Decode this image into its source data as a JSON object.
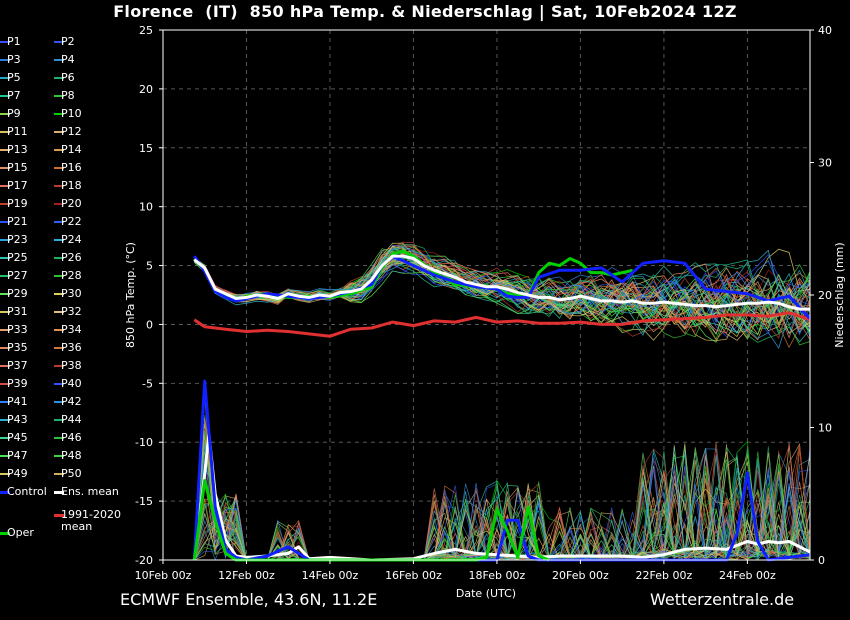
{
  "title": "Florence  (IT)  850 hPa Temp. & Niederschlag | Sat, 10Feb2024 12Z",
  "footer_left": "ECMWF Ensemble, 43.6N, 11.2E",
  "footer_right": "Wetterzentrale.de",
  "legend": [
    {
      "label": "P1",
      "color": "#3a4dff"
    },
    {
      "label": "P2",
      "color": "#3355ee"
    },
    {
      "label": "P3",
      "color": "#2f7fd9"
    },
    {
      "label": "P4",
      "color": "#2f8fd0"
    },
    {
      "label": "P5",
      "color": "#27a6c8"
    },
    {
      "label": "P6",
      "color": "#22b070"
    },
    {
      "label": "P7",
      "color": "#1fc890"
    },
    {
      "label": "P8",
      "color": "#32c832"
    },
    {
      "label": "P9",
      "color": "#8bd34a"
    },
    {
      "label": "P10",
      "color": "#00d000"
    },
    {
      "label": "P11",
      "color": "#d6c05a"
    },
    {
      "label": "P12",
      "color": "#d8b070"
    },
    {
      "label": "P13",
      "color": "#e0b070"
    },
    {
      "label": "P14",
      "color": "#d89858"
    },
    {
      "label": "P15",
      "color": "#e09060"
    },
    {
      "label": "P16",
      "color": "#d07030"
    },
    {
      "label": "P17",
      "color": "#e07060"
    },
    {
      "label": "P18",
      "color": "#b04030"
    },
    {
      "label": "P19",
      "color": "#c04030"
    },
    {
      "label": "P20",
      "color": "#a02020"
    },
    {
      "label": "P21",
      "color": "#3050ff"
    },
    {
      "label": "P22",
      "color": "#2f60f0"
    },
    {
      "label": "P23",
      "color": "#2f9fe0"
    },
    {
      "label": "P24",
      "color": "#2fafd8"
    },
    {
      "label": "P25",
      "color": "#30c0b0"
    },
    {
      "label": "P26",
      "color": "#20b060"
    },
    {
      "label": "P27",
      "color": "#22c060"
    },
    {
      "label": "P28",
      "color": "#30c030"
    },
    {
      "label": "P29",
      "color": "#60e060"
    },
    {
      "label": "P30",
      "color": "#d8d060"
    },
    {
      "label": "P31",
      "color": "#d8c860"
    },
    {
      "label": "P32",
      "color": "#e0c078"
    },
    {
      "label": "P33",
      "color": "#e0a070"
    },
    {
      "label": "P34",
      "color": "#e09050"
    },
    {
      "label": "P35",
      "color": "#e08860"
    },
    {
      "label": "P36",
      "color": "#d07838"
    },
    {
      "label": "P37",
      "color": "#e07060"
    },
    {
      "label": "P38",
      "color": "#b04030"
    },
    {
      "label": "P39",
      "color": "#d05040"
    },
    {
      "label": "P40",
      "color": "#3050ff"
    },
    {
      "label": "P41",
      "color": "#3080ff"
    },
    {
      "label": "P42",
      "color": "#2f90e0"
    },
    {
      "label": "P43",
      "color": "#30b0d0"
    },
    {
      "label": "P44",
      "color": "#20b070"
    },
    {
      "label": "P45",
      "color": "#40d090"
    },
    {
      "label": "P46",
      "color": "#30c040"
    },
    {
      "label": "P47",
      "color": "#50e050"
    },
    {
      "label": "P48",
      "color": "#40d040"
    },
    {
      "label": "P49",
      "color": "#d8c860"
    },
    {
      "label": "P50",
      "color": "#d0b060"
    },
    {
      "label": "Control",
      "color": "#1020ff"
    },
    {
      "label": "Ens. mean",
      "color": "#ffffff"
    },
    {
      "label": "Oper",
      "color": "#00d000"
    },
    {
      "label": "1991-2020\nmean",
      "color": "#e03030"
    }
  ],
  "chart_data": {
    "type": "line",
    "xlabel": "Date (UTC)",
    "ylabel": "850 hPa Temp. (°C)",
    "ylabel_right": "Niederschlag (mm)",
    "x_start": "10Feb 00z",
    "x_ticks": [
      "10Feb 00z",
      "12Feb 00z",
      "14Feb 00z",
      "16Feb 00z",
      "18Feb 00z",
      "20Feb 00z",
      "22Feb 00z",
      "24Feb 00z"
    ],
    "x_days": [
      0,
      2,
      4,
      6,
      8,
      10,
      12,
      14
    ],
    "xlim_days": [
      0,
      15.5
    ],
    "ylim": [
      -20,
      25
    ],
    "y_ticks": [
      -20,
      -15,
      -10,
      -5,
      0,
      5,
      10,
      15,
      20,
      25
    ],
    "ylim_right": [
      0,
      40
    ],
    "y_ticks_right": [
      0,
      10,
      20,
      30,
      40
    ],
    "grid": true,
    "temperature_series": [
      {
        "name": "Ens. mean",
        "color": "#ffffff",
        "x": [
          0.75,
          1,
          1.25,
          1.5,
          1.75,
          2,
          2.25,
          2.5,
          2.75,
          3,
          3.25,
          3.5,
          3.75,
          4,
          4.25,
          4.5,
          4.75,
          5,
          5.25,
          5.5,
          5.75,
          6,
          6.25,
          6.5,
          6.75,
          7,
          7.25,
          7.5,
          7.75,
          8,
          8.25,
          8.5,
          8.75,
          9,
          9.25,
          9.5,
          9.75,
          10,
          10.25,
          10.5,
          10.75,
          11,
          11.25,
          11.5,
          11.75,
          12,
          12.25,
          12.5,
          12.75,
          13,
          13.25,
          13.5,
          13.75,
          14,
          14.25,
          14.5,
          14.75,
          15,
          15.25,
          15.5
        ],
        "y": [
          5.5,
          4.8,
          3.0,
          2.6,
          2.2,
          2.3,
          2.5,
          2.4,
          2.2,
          2.6,
          2.4,
          2.3,
          2.5,
          2.4,
          2.7,
          2.8,
          3.0,
          3.8,
          5.0,
          5.8,
          5.8,
          5.6,
          5.0,
          4.6,
          4.3,
          4.0,
          3.6,
          3.4,
          3.2,
          3.2,
          3.0,
          2.7,
          2.5,
          2.3,
          2.3,
          2.1,
          2.2,
          2.4,
          2.2,
          2.0,
          2.0,
          1.9,
          2.0,
          1.8,
          1.8,
          1.9,
          1.8,
          1.7,
          1.6,
          1.6,
          1.5,
          1.6,
          1.7,
          1.8,
          1.8,
          1.9,
          1.8,
          1.5,
          1.3,
          1.3
        ]
      },
      {
        "name": "Control",
        "color": "#1020ff",
        "x": [
          0.75,
          1,
          1.25,
          1.5,
          1.75,
          2,
          2.5,
          3,
          3.5,
          4,
          4.5,
          5,
          5.25,
          5.5,
          5.75,
          6,
          6.5,
          7,
          7.5,
          8,
          8.25,
          8.5,
          8.75,
          9,
          9.5,
          10,
          10.5,
          11,
          11.5,
          12,
          12.5,
          13,
          13.5,
          14,
          14.5,
          15,
          15.5
        ],
        "y": [
          5.8,
          4.5,
          2.8,
          2.3,
          2.0,
          2.2,
          2.6,
          2.4,
          2.2,
          2.4,
          2.8,
          3.4,
          5.0,
          5.8,
          5.4,
          5.0,
          4.2,
          3.6,
          3.2,
          3.0,
          2.4,
          2.3,
          2.3,
          4.0,
          4.6,
          4.6,
          4.8,
          3.6,
          5.2,
          5.4,
          5.2,
          3.0,
          2.8,
          2.6,
          2.0,
          2.4,
          0.5
        ]
      },
      {
        "name": "Oper",
        "color": "#00d000",
        "x": [
          0.75,
          1,
          1.25,
          1.5,
          1.75,
          2,
          2.5,
          3,
          3.5,
          4,
          4.5,
          5,
          5.25,
          5.5,
          5.75,
          6,
          6.5,
          7,
          7.5,
          8,
          8.25,
          8.5,
          8.75,
          9,
          9.25,
          9.5,
          9.75,
          10,
          10.25,
          10.5,
          10.75,
          11.25
        ],
        "y": [
          5.6,
          4.6,
          2.8,
          2.4,
          2.0,
          2.4,
          2.6,
          2.3,
          2.4,
          2.3,
          2.6,
          3.2,
          4.8,
          6.0,
          6.2,
          5.8,
          4.4,
          3.4,
          3.2,
          3.0,
          2.6,
          2.5,
          2.4,
          4.4,
          5.2,
          5.0,
          5.6,
          5.2,
          4.4,
          4.4,
          4.2,
          4.6
        ]
      },
      {
        "name": "1991-2020 mean",
        "color": "#e03030",
        "x": [
          0.75,
          1,
          1.5,
          2,
          2.5,
          3,
          3.5,
          4,
          4.5,
          5,
          5.5,
          6,
          6.5,
          7,
          7.5,
          8,
          8.5,
          9,
          9.5,
          10,
          10.5,
          11,
          11.5,
          12,
          12.5,
          13,
          13.5,
          14,
          14.5,
          15,
          15.5
        ],
        "y": [
          0.4,
          -0.2,
          -0.4,
          -0.6,
          -0.5,
          -0.6,
          -0.8,
          -1.0,
          -0.4,
          -0.3,
          0.2,
          -0.1,
          0.3,
          0.2,
          0.6,
          0.2,
          0.3,
          0.1,
          0.1,
          0.2,
          0.0,
          0.0,
          0.3,
          0.4,
          0.5,
          0.6,
          0.8,
          0.8,
          0.7,
          1.0,
          0.4
        ]
      }
    ],
    "precipitation_series": [
      {
        "name": "Ens. mean",
        "color": "#ffffff",
        "x": [
          0.75,
          1,
          1.1,
          1.25,
          1.5,
          1.75,
          2,
          2.5,
          3,
          3.25,
          3.5,
          4,
          5,
          6,
          6.5,
          7,
          7.5,
          8,
          8.5,
          9,
          9.5,
          10,
          10.5,
          11,
          11.5,
          12,
          12.5,
          13,
          13.5,
          14,
          14.25,
          14.5,
          14.75,
          15,
          15.5
        ],
        "y": [
          0,
          6.5,
          9.5,
          5,
          1.5,
          0.3,
          0.2,
          0.3,
          0.5,
          1.0,
          0.1,
          0.2,
          0,
          0.1,
          0.5,
          0.8,
          0.5,
          0.4,
          0.3,
          0.2,
          0.3,
          0.3,
          0.3,
          0.3,
          0.2,
          0.4,
          0.8,
          0.9,
          0.8,
          1.4,
          1.2,
          1.4,
          1.3,
          1.4,
          0.6
        ]
      },
      {
        "name": "Control",
        "color": "#1020ff",
        "x": [
          0.75,
          1,
          1.25,
          1.5,
          1.75,
          2,
          2.5,
          3,
          3.5,
          8,
          8.25,
          8.5,
          8.75,
          9,
          13.5,
          13.75,
          14,
          14.25,
          14.5,
          15,
          15.5
        ],
        "y": [
          0,
          13.5,
          4,
          0.8,
          0.2,
          0,
          0.3,
          1.0,
          0,
          0,
          3,
          3,
          0.3,
          0,
          0,
          2,
          6.6,
          1.4,
          0,
          0.2,
          0.4
        ]
      },
      {
        "name": "Oper",
        "color": "#00d000",
        "x": [
          0.75,
          1,
          1.25,
          1.5,
          1.75,
          2,
          7.5,
          7.75,
          8,
          8.25,
          8.5,
          8.75,
          9,
          9.25
        ],
        "y": [
          0,
          6,
          3,
          0.5,
          0,
          0,
          0,
          0.2,
          3.8,
          2.2,
          0.2,
          4,
          0.3,
          0
        ]
      }
    ]
  }
}
